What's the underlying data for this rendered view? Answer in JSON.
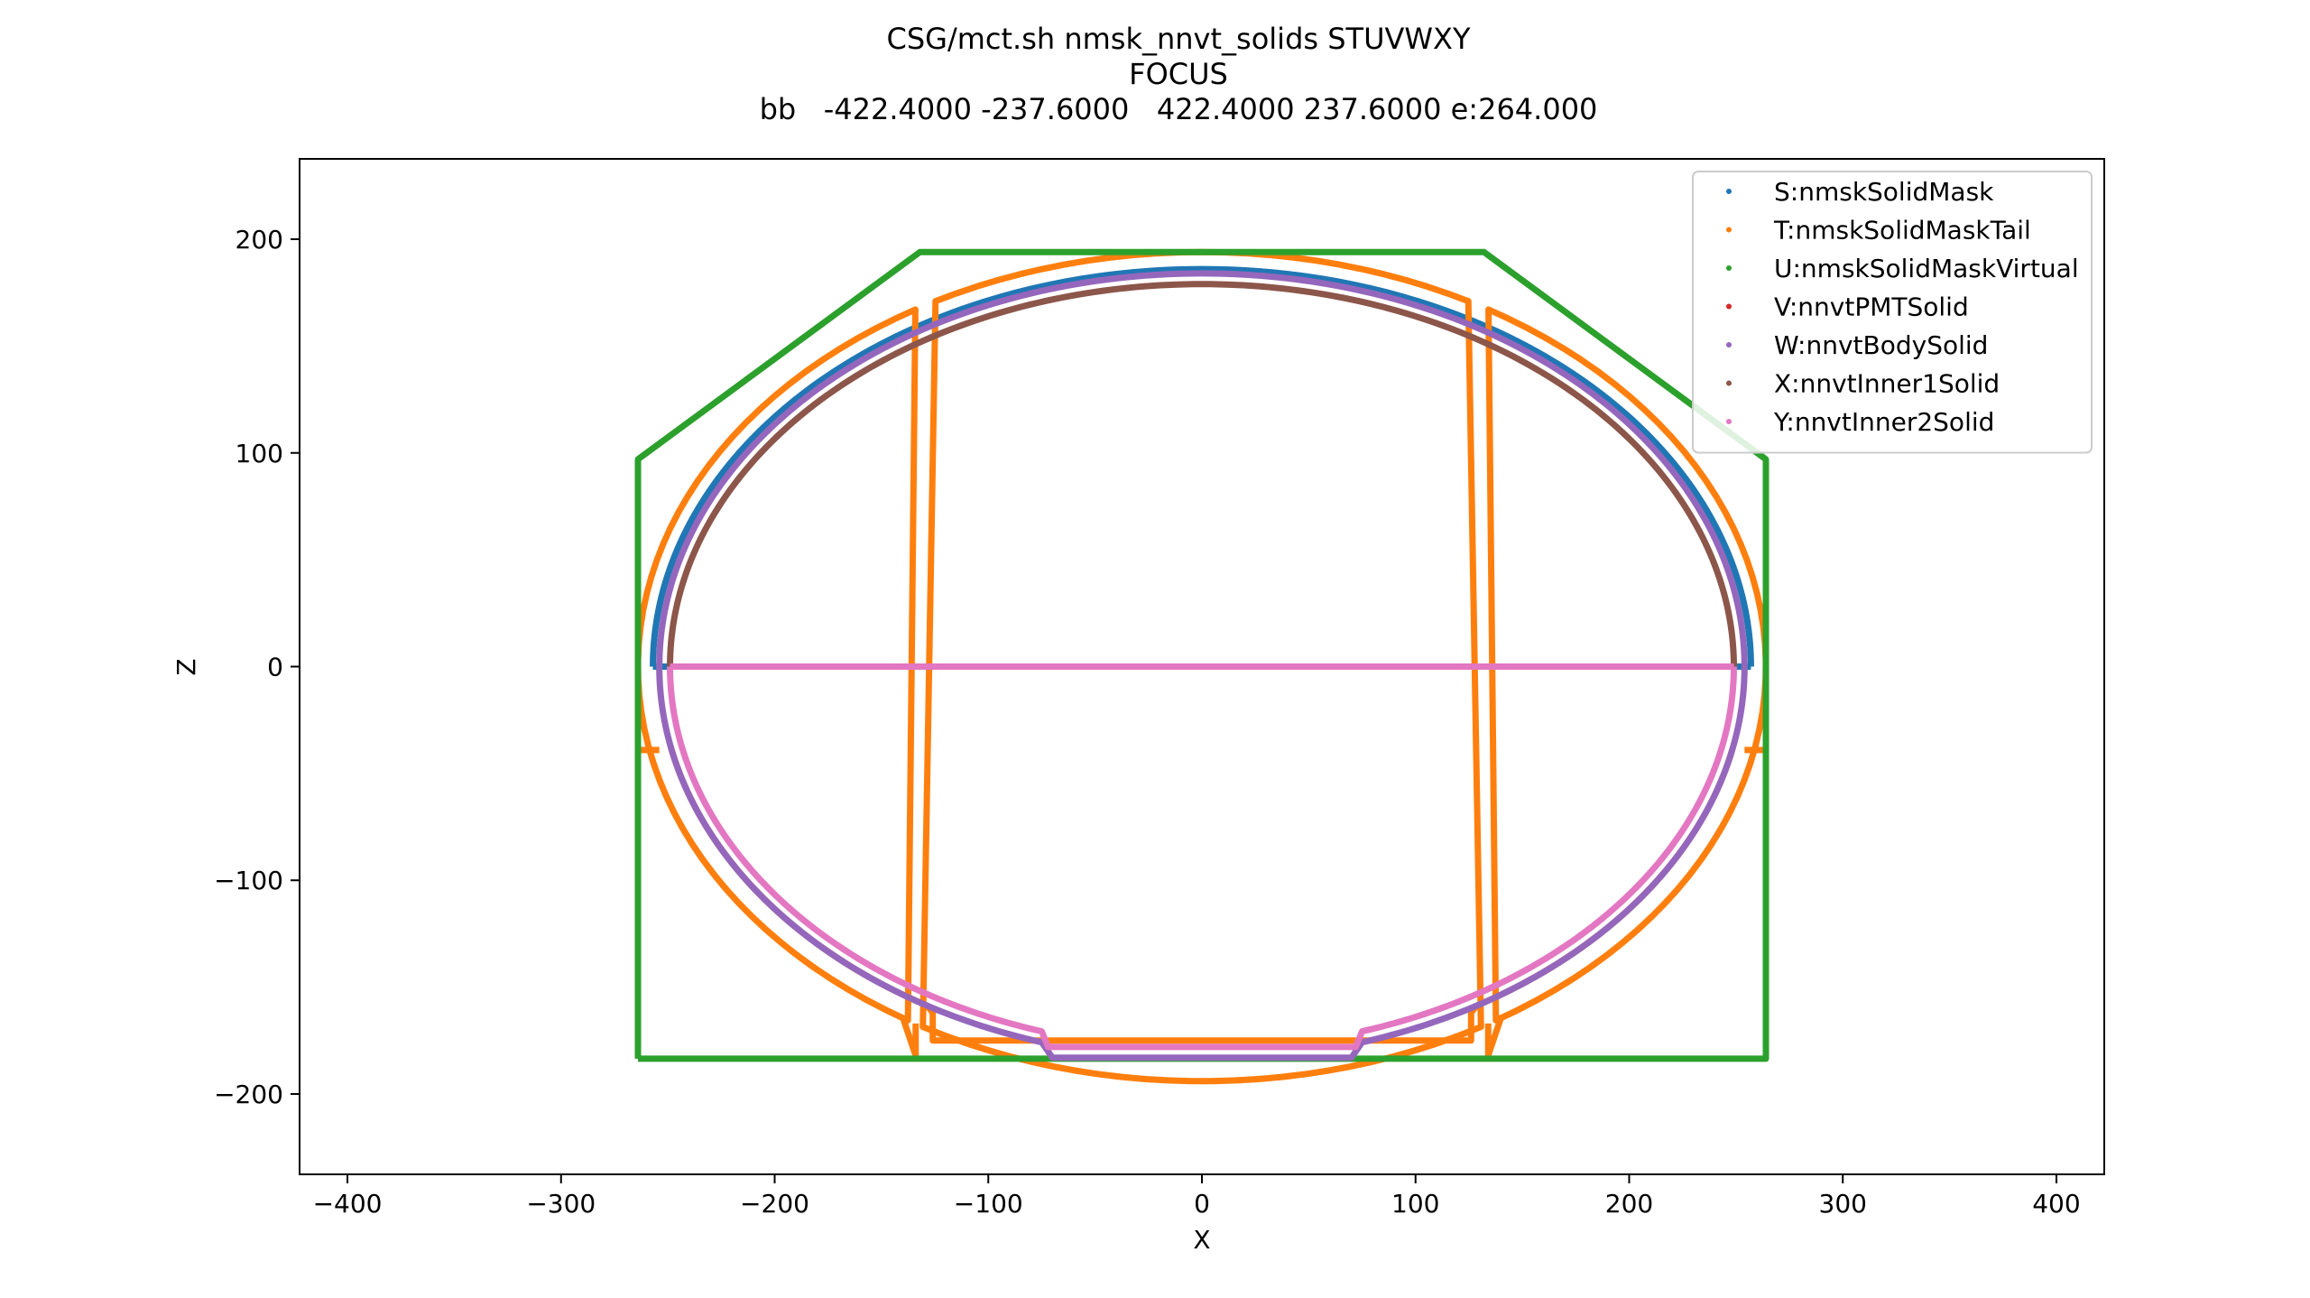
{
  "figure": {
    "title_lines": [
      "CSG/mct.sh nmsk_nnvt_solids STUVWXY",
      "FOCUS",
      "bb   -422.4000 -237.6000   422.4000 237.6000 e:264.000"
    ]
  },
  "chart_data": {
    "type": "scatter",
    "xlabel": "X",
    "ylabel": "Z",
    "xlim": [
      -422.4,
      422.4
    ],
    "ylim": [
      -237.6,
      237.6
    ],
    "xticks": [
      -400,
      -300,
      -200,
      -100,
      0,
      100,
      200,
      300,
      400
    ],
    "xtick_labels": [
      "−400",
      "−300",
      "−200",
      "−100",
      "0",
      "100",
      "200",
      "300",
      "400"
    ],
    "yticks": [
      -200,
      -100,
      0,
      100,
      200
    ],
    "ytick_labels": [
      "−200",
      "−100",
      "0",
      "100",
      "200"
    ],
    "grid": false,
    "legend_position": "top-right",
    "series": [
      {
        "name": "S:nmskSolidMask",
        "color": "#1f77b4",
        "shape": "upper-half-ellipse",
        "params": {
          "cx": 0,
          "cz": 0,
          "rx": 257,
          "rz": 186
        }
      },
      {
        "name": "T:nmskSolidMaskTail",
        "color": "#ff7f0e",
        "shape": "tail",
        "params": {
          "outer_rx": 264,
          "outer_rz": 194,
          "inner_rx": 254,
          "inner_rz": 184,
          "top_z": -39,
          "outer_notch_x": 134,
          "outer_notch_z": -182,
          "outer_step_z": -167,
          "inner_notch_x": 126,
          "inner_notch_z": -175,
          "inner_step_z": -162
        }
      },
      {
        "name": "U:nmskSolidMaskVirtual",
        "color": "#2ca02c",
        "shape": "polycone",
        "points": [
          [
            -264,
            -183.5
          ],
          [
            -264,
            97
          ],
          [
            -132,
            194
          ],
          [
            132,
            194
          ],
          [
            264,
            97
          ],
          [
            264,
            -183.5
          ],
          [
            -264,
            -183.5
          ]
        ]
      },
      {
        "name": "V:nnvtPMTSolid",
        "color": "#d62728",
        "shape": "hidden-under-overlay",
        "params": {
          "rx": 254,
          "rz": 184
        }
      },
      {
        "name": "W:nnvtBodySolid",
        "color": "#9467bd",
        "shape": "pmt-body",
        "params": {
          "rx": 254,
          "rz": 184,
          "neck_x": 75,
          "neck_top_z": -172,
          "neck_bottom_z": -183,
          "neck_inner_x": 70
        }
      },
      {
        "name": "X:nnvtInner1Solid",
        "color": "#8c564b",
        "shape": "upper-half-ellipse",
        "params": {
          "cx": 0,
          "cz": 0,
          "rx": 249,
          "rz": 179
        }
      },
      {
        "name": "Y:nnvtInner2Solid",
        "color": "#e377c2",
        "shape": "lower-half-body",
        "params": {
          "rx": 249,
          "rz": 179,
          "neck_x": 75,
          "neck_top_z": -171,
          "neck_bottom_z": -178,
          "neck_inner_x": 72
        }
      }
    ]
  }
}
